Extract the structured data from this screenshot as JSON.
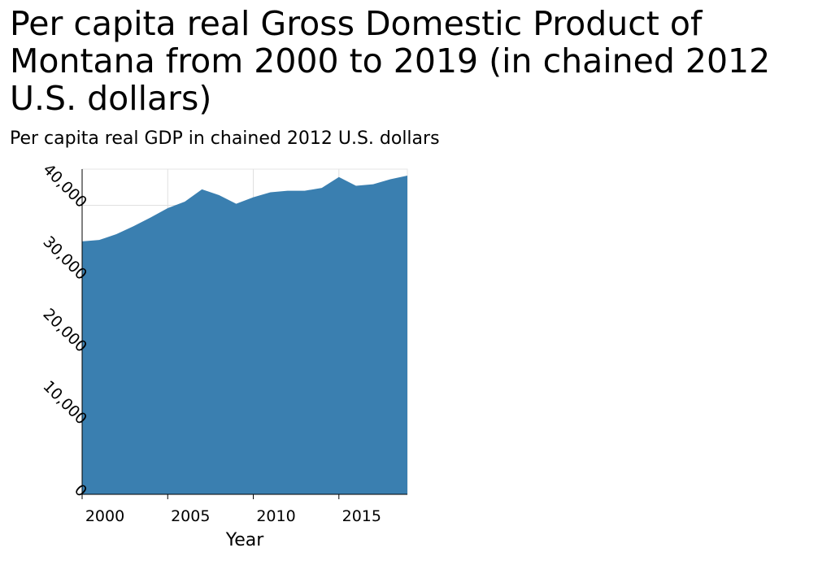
{
  "chart_data": {
    "type": "area",
    "title": "Per capita real Gross Domestic Product of Montana from 2000 to 2019 (in chained 2012 U.S. dollars)",
    "ylabel": "Per capita real GDP in chained 2012 U.S. dollars",
    "xlabel": "Year",
    "xlim": [
      2000,
      2019
    ],
    "ylim": [
      0,
      45000
    ],
    "x_ticks": [
      2000,
      2005,
      2010,
      2015
    ],
    "x_tick_labels": [
      "2000",
      "2005",
      "2010",
      "2015"
    ],
    "y_ticks": [
      0,
      10000,
      20000,
      30000,
      40000
    ],
    "y_tick_labels": [
      "0",
      "10,000",
      "20,000",
      "30,000",
      "40,000"
    ],
    "grid": true,
    "color": "#3a7fb0",
    "x": [
      2000,
      2001,
      2002,
      2003,
      2004,
      2005,
      2006,
      2007,
      2008,
      2009,
      2010,
      2011,
      2012,
      2013,
      2014,
      2015,
      2016,
      2017,
      2018,
      2019
    ],
    "values": [
      35000,
      35200,
      36000,
      37100,
      38300,
      39600,
      40500,
      42200,
      41400,
      40200,
      41100,
      41800,
      42000,
      42000,
      42400,
      43900,
      42700,
      42900,
      43600,
      44100
    ]
  }
}
